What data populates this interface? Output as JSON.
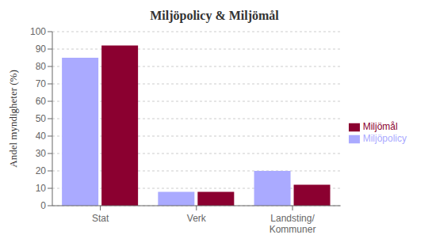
{
  "chart_data": {
    "type": "bar",
    "title": "Miljöpolicy & Miljömål",
    "ylabel": "Andel myndigheter (%)",
    "categories": [
      "Stat",
      "Verk",
      "Landsting/\nKommuner"
    ],
    "series": [
      {
        "name": "Miljöpolicy",
        "values": [
          85,
          8,
          20
        ],
        "color": "#aaaaff"
      },
      {
        "name": "Miljömål",
        "values": [
          92,
          8,
          12
        ],
        "color": "#8b0030"
      }
    ],
    "ylim": [
      0,
      100
    ],
    "yticks": [
      0,
      10,
      20,
      30,
      40,
      50,
      60,
      70,
      80,
      90,
      100
    ],
    "grid": true,
    "legend": "right"
  }
}
